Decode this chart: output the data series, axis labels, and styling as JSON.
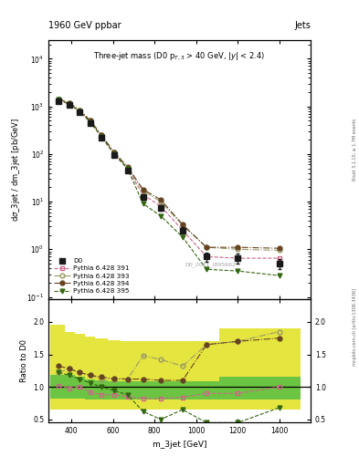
{
  "title_top": "1960 GeV ppbar",
  "title_top_right": "Jets",
  "subtitle": "Three-jet mass (D0 p_{T,3} > 40 GeV, |y| < 2.4)",
  "xlabel": "m_3jet [GeV]",
  "ylabel_main": "d#sigma_3jet / dm_3jet [pb/GeV]",
  "ylabel_ratio": "Ratio to D0",
  "watermark": "D0_2011_I895662",
  "side_text_bottom": "mcplots.cern.ch [arXiv:1306.3436]",
  "side_text_top": "Rivet 3.1.10, ≥ 1.7M events",
  "x_centers": [
    340,
    390,
    440,
    490,
    545,
    605,
    670,
    745,
    830,
    935,
    1050,
    1200,
    1400
  ],
  "d0_y": [
    1300,
    1050,
    750,
    450,
    220,
    95,
    45,
    12.5,
    7.5,
    2.5,
    0.7,
    0.65,
    0.5
  ],
  "d0_yerr": [
    60,
    45,
    30,
    20,
    12,
    5,
    3,
    1.5,
    1.0,
    0.4,
    0.15,
    0.15,
    0.12
  ],
  "p391_y": [
    1350,
    1100,
    790,
    470,
    230,
    100,
    48,
    14,
    8.0,
    2.5,
    0.7,
    0.65,
    0.65
  ],
  "p393_y": [
    1400,
    1150,
    820,
    500,
    245,
    107,
    52,
    17,
    10,
    3.2,
    1.1,
    1.0,
    0.95
  ],
  "p394_y": [
    1420,
    1170,
    840,
    510,
    250,
    110,
    54,
    18,
    11,
    3.3,
    1.1,
    1.1,
    1.05
  ],
  "p395_y": [
    1380,
    1120,
    790,
    470,
    230,
    100,
    50,
    9.0,
    5.0,
    1.8,
    0.38,
    0.35,
    0.28
  ],
  "ratio_p391": [
    1.02,
    0.98,
    1.0,
    0.92,
    0.88,
    0.88,
    0.85,
    0.82,
    0.82,
    0.84,
    0.9,
    0.9,
    1.0
  ],
  "ratio_p393": [
    1.22,
    1.28,
    1.22,
    1.18,
    1.12,
    1.12,
    1.12,
    1.48,
    1.42,
    1.32,
    1.65,
    1.7,
    1.85
  ],
  "ratio_p394": [
    1.32,
    1.28,
    1.22,
    1.18,
    1.15,
    1.13,
    1.12,
    1.12,
    1.1,
    1.1,
    1.65,
    1.7,
    1.75
  ],
  "ratio_p395": [
    1.22,
    1.18,
    1.12,
    1.06,
    1.0,
    0.94,
    0.88,
    0.62,
    0.5,
    0.65,
    0.45,
    0.45,
    0.68
  ],
  "band_x_edges": [
    300,
    370,
    415,
    465,
    515,
    575,
    635,
    705,
    785,
    880,
    990,
    1110,
    1300,
    1500
  ],
  "band_yellow_lo": [
    0.65,
    0.65,
    0.65,
    0.65,
    0.65,
    0.65,
    0.65,
    0.65,
    0.65,
    0.65,
    0.65,
    0.65,
    0.65
  ],
  "band_yellow_hi": [
    1.95,
    1.85,
    1.82,
    1.78,
    1.75,
    1.72,
    1.7,
    1.7,
    1.7,
    1.7,
    1.7,
    1.9,
    1.9
  ],
  "band_green_lo": [
    0.82,
    0.82,
    0.82,
    0.8,
    0.8,
    0.8,
    0.8,
    0.8,
    0.8,
    0.8,
    0.8,
    0.8,
    0.8
  ],
  "band_green_hi": [
    1.18,
    1.18,
    1.15,
    1.12,
    1.1,
    1.08,
    1.08,
    1.08,
    1.08,
    1.08,
    1.08,
    1.15,
    1.15
  ],
  "color_d0": "#1a1a1a",
  "color_p391": "#cc6688",
  "color_p393": "#999966",
  "color_p394": "#664422",
  "color_p395": "#336611",
  "color_yellow": "#dddd00",
  "color_green": "#44bb44",
  "xlim": [
    290,
    1550
  ],
  "ylim_main": [
    0.09,
    25000
  ],
  "ylim_ratio": [
    0.45,
    2.35
  ],
  "ratio_yticks": [
    0.5,
    1.0,
    1.5,
    2.0
  ]
}
